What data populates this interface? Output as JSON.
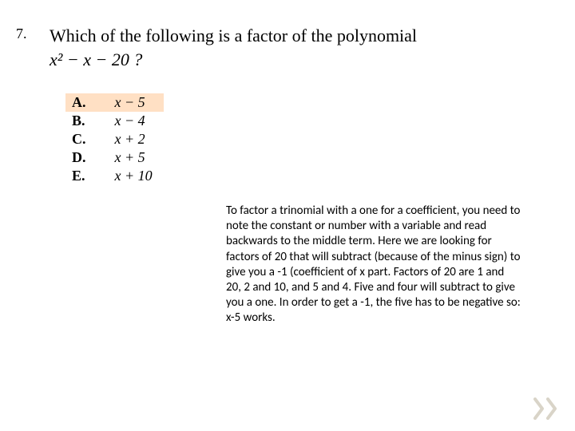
{
  "question": {
    "number": "7.",
    "prompt_line1": "Which of the following is a factor of the polynomial",
    "expression": "x² − x − 20 ?"
  },
  "choices": [
    {
      "letter": "A.",
      "value": "x − 5",
      "highlight": true
    },
    {
      "letter": "B.",
      "value": "x − 4",
      "highlight": false
    },
    {
      "letter": "C.",
      "value": "x + 2",
      "highlight": false
    },
    {
      "letter": "D.",
      "value": "x + 5",
      "highlight": false
    },
    {
      "letter": "E.",
      "value": "x + 10",
      "highlight": false
    }
  ],
  "explanation": "To factor a trinomial with a one for a coefficient, you need to note the constant or number with a variable and read backwards to the middle term.  Here we are looking for factors of 20 that will subtract (because of the minus sign) to give you a -1 (coefficient of x part.  Factors of 20 are 1 and 20, 2 and 10, and 5 and 4.  Five and four will subtract to give you a one.  In order to get a -1, the five has to be negative so:  x-5 works.",
  "style": {
    "highlight_color": "#ffe0c4",
    "arrow_color": "#d9d4c8",
    "body_font": "Calibri",
    "serif_font": "Times New Roman",
    "question_fontsize": 22,
    "choice_fontsize": 18,
    "explanation_fontsize": 15
  }
}
